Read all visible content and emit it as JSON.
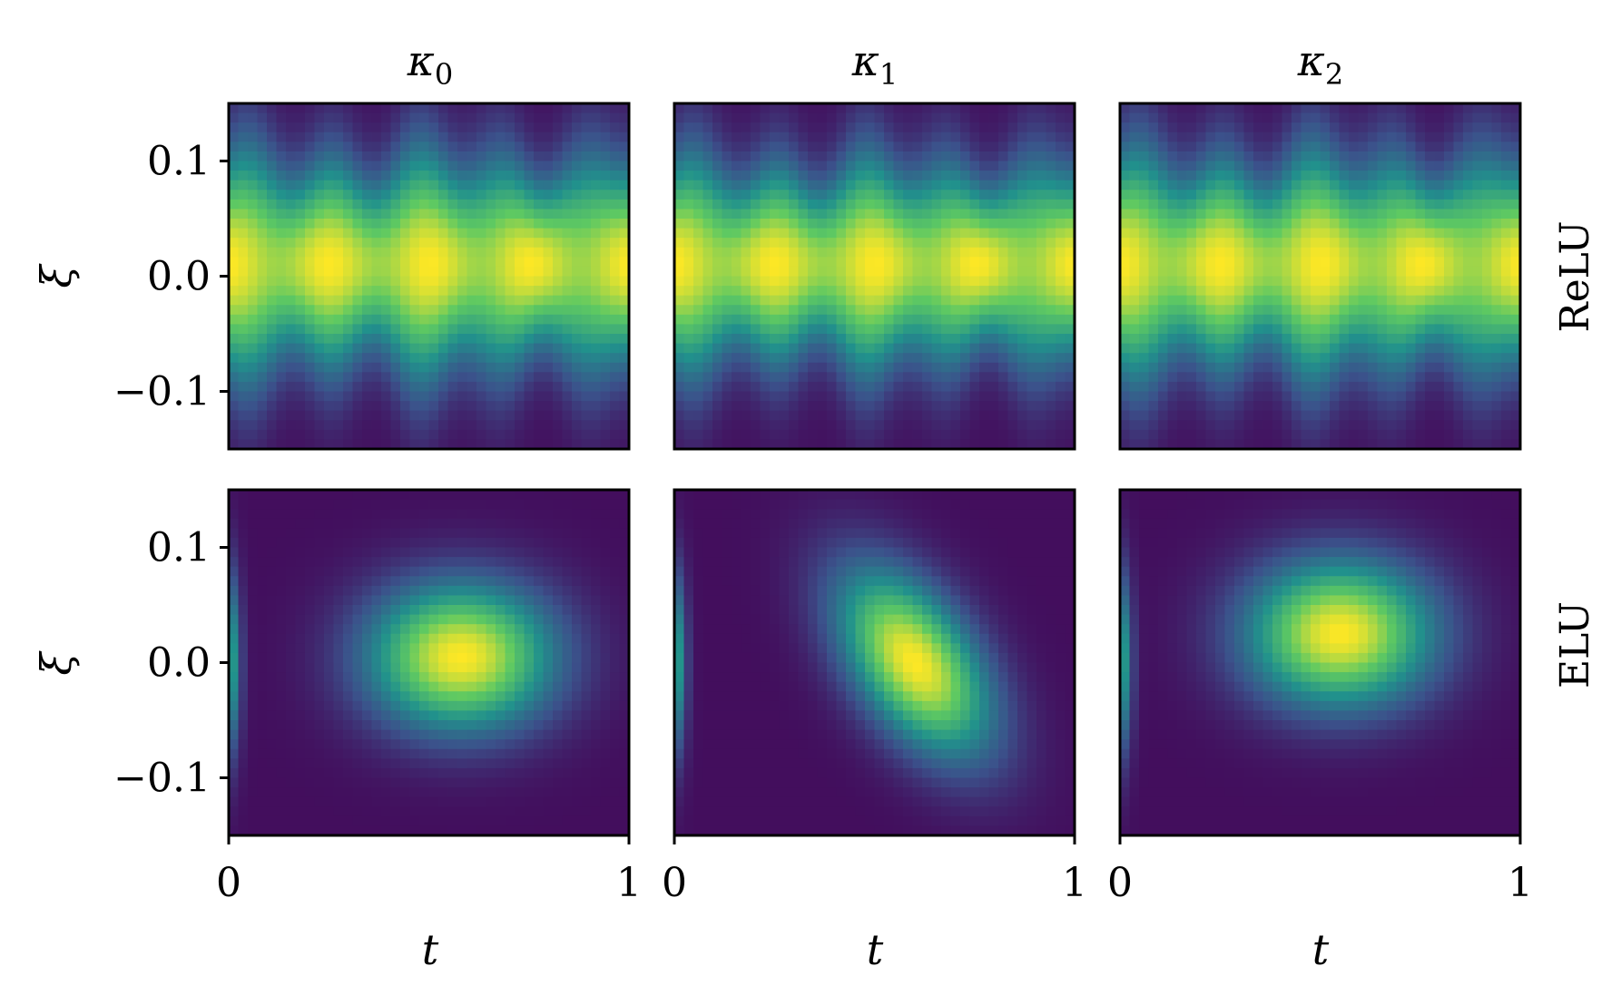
{
  "colormap": "viridis",
  "colors": {
    "viridis_low": "#440154",
    "viridis_mid": "#21918c",
    "viridis_high": "#fde725",
    "axes": "#000000",
    "background": "#ffffff"
  },
  "column_titles": [
    {
      "base": "κ",
      "sub": "0"
    },
    {
      "base": "κ",
      "sub": "1"
    },
    {
      "base": "κ",
      "sub": "2"
    }
  ],
  "row_labels": [
    "ReLU",
    "ELU"
  ],
  "ylabel": "ξ",
  "xlabel": "t",
  "yticks": [
    {
      "value": 0.1,
      "label": "0.1"
    },
    {
      "value": 0.0,
      "label": "0.0"
    },
    {
      "value": -0.1,
      "label": "−0.1"
    }
  ],
  "xticks": [
    {
      "value": 0,
      "label": "0"
    },
    {
      "value": 1,
      "label": "1"
    }
  ],
  "chart_data": {
    "type": "heatmap",
    "layout": "2 rows x 3 columns grid of heatmaps",
    "xlabel": "t",
    "ylabel": "ξ",
    "xlim": [
      0,
      1
    ],
    "ylim": [
      -0.15,
      0.15
    ],
    "colormap": "viridis",
    "columns": [
      "κ0",
      "κ1",
      "κ2"
    ],
    "rows": [
      "ReLU",
      "ELU"
    ],
    "panels": [
      {
        "row": "ReLU",
        "col": "κ0",
        "peak_t": 0.25,
        "peak_xi": 0.01,
        "width_xi": 0.085,
        "pattern": "horizontal_band"
      },
      {
        "row": "ReLU",
        "col": "κ1",
        "peak_t": 0.25,
        "peak_xi": 0.01,
        "width_xi": 0.08,
        "pattern": "horizontal_band"
      },
      {
        "row": "ReLU",
        "col": "κ2",
        "peak_t": 0.25,
        "peak_xi": 0.01,
        "width_xi": 0.085,
        "pattern": "horizontal_band"
      },
      {
        "row": "ELU",
        "col": "κ0",
        "peak_t": 0.58,
        "peak_xi": 0.005,
        "width_t": 0.22,
        "width_xi": 0.06,
        "pattern": "central_blob"
      },
      {
        "row": "ELU",
        "col": "κ1",
        "peak_t": 0.6,
        "peak_xi": 0.0,
        "width_t": 0.18,
        "width_xi": 0.065,
        "pattern": "central_blob_skewed"
      },
      {
        "row": "ELU",
        "col": "κ2",
        "peak_t": 0.55,
        "peak_xi": 0.025,
        "width_t": 0.22,
        "width_xi": 0.06,
        "pattern": "central_blob"
      }
    ]
  }
}
